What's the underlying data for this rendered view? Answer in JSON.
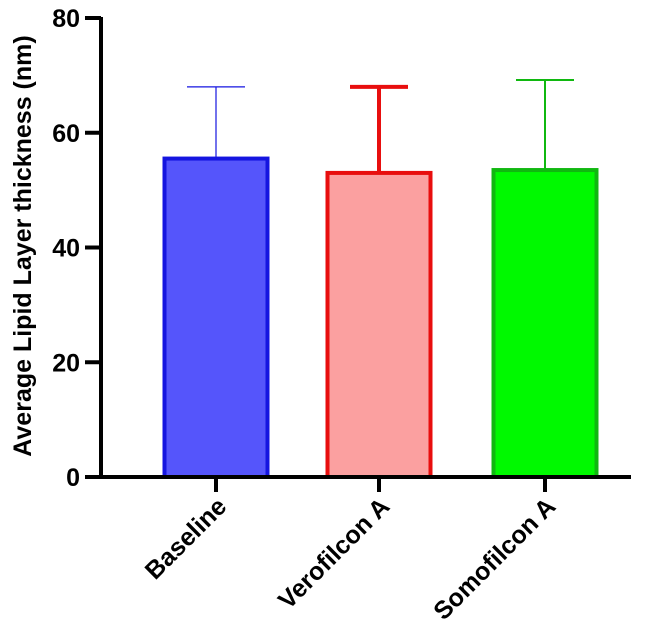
{
  "chart_data": {
    "type": "bar",
    "categories": [
      "Baseline",
      "Verofilcon A",
      "Somofilcon A"
    ],
    "values": [
      55.5,
      53.0,
      53.5
    ],
    "error_upper": [
      68.0,
      68.0,
      69.2
    ],
    "ylabel": "Average Lipid Layer thickness (nm)",
    "xlabel": "",
    "ylim": [
      0,
      80
    ],
    "yticks": [
      "0",
      "20",
      "40",
      "60",
      "80"
    ],
    "grid": false,
    "legend": "none",
    "colors": {
      "fills": [
        "#5555fb",
        "#fba0a0",
        "#00f900"
      ],
      "strokes": [
        "#1515e0",
        "#e80e0e",
        "#10b810"
      ]
    }
  }
}
